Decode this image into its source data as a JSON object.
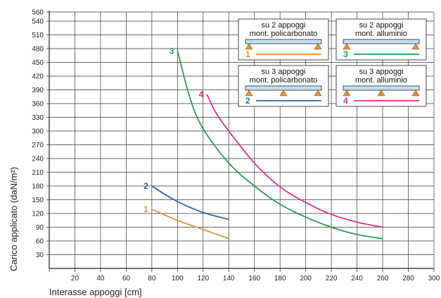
{
  "chart_data": {
    "type": "line",
    "xlabel": "Interasse appoggi  [cm]",
    "ylabel": "Carico applicato  (daN/m²)",
    "xlim": [
      0,
      300
    ],
    "ylim": [
      0,
      560
    ],
    "xticks": [
      20,
      40,
      60,
      80,
      100,
      120,
      140,
      160,
      180,
      200,
      220,
      240,
      260,
      280,
      300
    ],
    "yticks": [
      30,
      60,
      90,
      120,
      150,
      180,
      210,
      240,
      270,
      300,
      330,
      360,
      390,
      420,
      450,
      480,
      510,
      540,
      560
    ],
    "grid": true,
    "series": [
      {
        "name": "1",
        "color": "#e0903c",
        "x": [
          80,
          100,
          120,
          140
        ],
        "y": [
          129,
          105,
          85,
          65
        ]
      },
      {
        "name": "2",
        "color": "#2a6a9a",
        "x": [
          80,
          90,
          100,
          110,
          120,
          130,
          140
        ],
        "y": [
          180,
          162,
          146,
          133,
          122,
          114,
          107
        ]
      },
      {
        "name": "3",
        "color": "#2a9a5a",
        "x": [
          100,
          110,
          120,
          140,
          160,
          180,
          200,
          220,
          240,
          260
        ],
        "y": [
          475,
          370,
          305,
          230,
          180,
          140,
          112,
          90,
          74,
          65
        ]
      },
      {
        "name": "4",
        "color": "#d6338a",
        "x": [
          123,
          130,
          140,
          160,
          180,
          200,
          220,
          240,
          260
        ],
        "y": [
          380,
          340,
          300,
          230,
          178,
          144,
          118,
          101,
          90
        ]
      }
    ],
    "legend": [
      {
        "title_line1": "su 2 appoggi",
        "title_line2": "mont. policarbonato",
        "number": "1",
        "supports": 2,
        "color": "#e0903c"
      },
      {
        "title_line1": "su 2 appoggi",
        "title_line2": "mont. alluminio",
        "number": "3",
        "supports": 2,
        "color": "#2a9a5a"
      },
      {
        "title_line1": "su 3 appoggi",
        "title_line2": "mont. policarbonato",
        "number": "2",
        "supports": 3,
        "color": "#2a6a9a"
      },
      {
        "title_line1": "su 3 appoggi",
        "title_line2": "mont. alluminio",
        "number": "4",
        "supports": 3,
        "color": "#d6338a"
      }
    ],
    "legend_position": "top-right",
    "beam_color": "#c7e1f2",
    "support_color": "#e0903c"
  }
}
